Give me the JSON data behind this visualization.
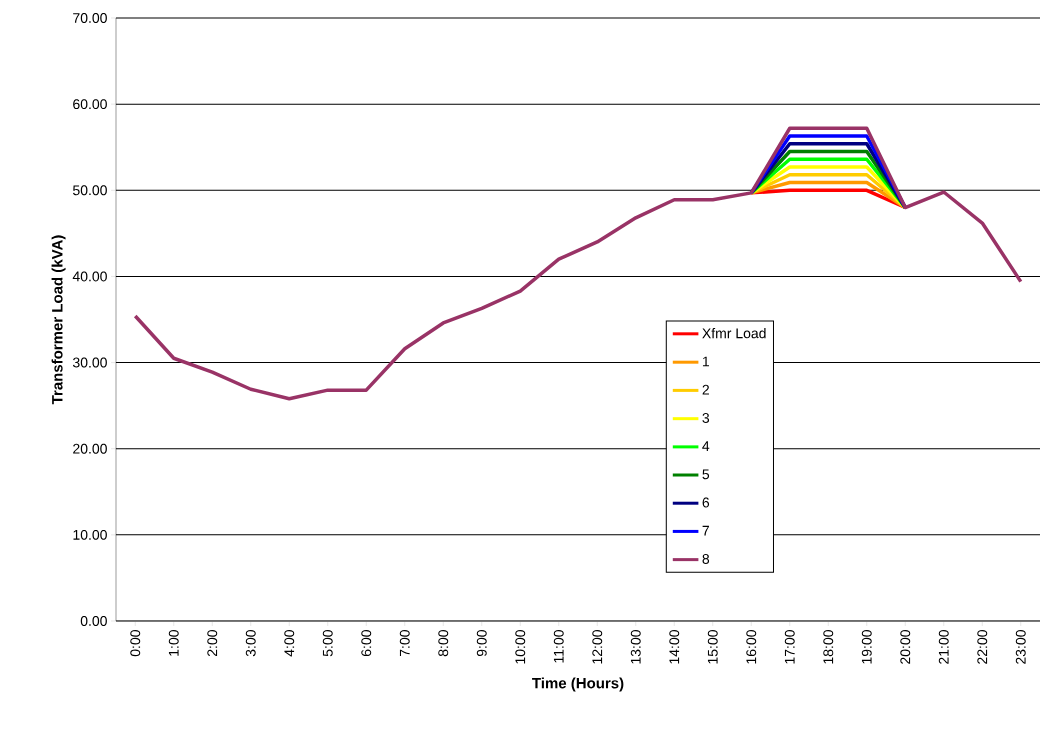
{
  "chart_data": {
    "type": "line",
    "xlabel": "Time (Hours)",
    "ylabel": "Transformer Load (kVA)",
    "categories": [
      "0:00",
      "1:00",
      "2:00",
      "3:00",
      "4:00",
      "5:00",
      "6:00",
      "7:00",
      "8:00",
      "9:00",
      "10:00",
      "11:00",
      "12:00",
      "13:00",
      "14:00",
      "15:00",
      "16:00",
      "17:00",
      "18:00",
      "19:00",
      "20:00",
      "21:00",
      "22:00",
      "23:00"
    ],
    "series": [
      {
        "name": "Xfmr Load",
        "color": "#ff0000",
        "values": [
          null,
          null,
          null,
          null,
          null,
          null,
          null,
          null,
          null,
          null,
          null,
          null,
          null,
          null,
          null,
          null,
          49.7,
          50.0,
          50.0,
          50.0,
          48.0,
          null,
          null,
          null
        ]
      },
      {
        "name": "1",
        "color": "#ff9900",
        "values": [
          null,
          null,
          null,
          null,
          null,
          null,
          null,
          null,
          null,
          null,
          null,
          null,
          null,
          null,
          null,
          null,
          49.7,
          50.9,
          50.9,
          50.9,
          48.0,
          null,
          null,
          null
        ]
      },
      {
        "name": "2",
        "color": "#ffcc00",
        "values": [
          null,
          null,
          null,
          null,
          null,
          null,
          null,
          null,
          null,
          null,
          null,
          null,
          null,
          null,
          null,
          null,
          49.7,
          51.8,
          51.8,
          51.8,
          48.0,
          null,
          null,
          null
        ]
      },
      {
        "name": "3",
        "color": "#ffff00",
        "values": [
          null,
          null,
          null,
          null,
          null,
          null,
          null,
          null,
          null,
          null,
          null,
          null,
          null,
          null,
          null,
          null,
          49.7,
          52.7,
          52.7,
          52.7,
          48.0,
          null,
          null,
          null
        ]
      },
      {
        "name": "4",
        "color": "#00ff00",
        "values": [
          null,
          null,
          null,
          null,
          null,
          null,
          null,
          null,
          null,
          null,
          null,
          null,
          null,
          null,
          null,
          null,
          49.7,
          53.6,
          53.6,
          53.6,
          48.0,
          null,
          null,
          null
        ]
      },
      {
        "name": "5",
        "color": "#008000",
        "values": [
          null,
          null,
          null,
          null,
          null,
          null,
          null,
          null,
          null,
          null,
          null,
          null,
          null,
          null,
          null,
          null,
          49.7,
          54.5,
          54.5,
          54.5,
          48.0,
          null,
          null,
          null
        ]
      },
      {
        "name": "6",
        "color": "#000080",
        "values": [
          null,
          null,
          null,
          null,
          null,
          null,
          null,
          null,
          null,
          null,
          null,
          null,
          null,
          null,
          null,
          null,
          49.7,
          55.4,
          55.4,
          55.4,
          48.0,
          null,
          null,
          null
        ]
      },
      {
        "name": "7",
        "color": "#0000ff",
        "values": [
          null,
          null,
          null,
          null,
          null,
          null,
          null,
          null,
          null,
          null,
          null,
          null,
          null,
          null,
          null,
          null,
          49.7,
          56.3,
          56.3,
          56.3,
          48.0,
          null,
          null,
          null
        ]
      },
      {
        "name": "8",
        "color": "#993366",
        "values": [
          35.4,
          30.5,
          28.9,
          26.9,
          25.8,
          26.8,
          26.8,
          31.6,
          34.6,
          36.3,
          38.3,
          42.0,
          44.0,
          46.8,
          48.9,
          48.9,
          49.7,
          57.2,
          57.2,
          57.2,
          48.0,
          49.8,
          46.2,
          39.4
        ]
      }
    ],
    "ylim": [
      0,
      70
    ],
    "yticks": [
      {
        "value": 0,
        "label": "0.00"
      },
      {
        "value": 10,
        "label": "10.00"
      },
      {
        "value": 20,
        "label": "20.00"
      },
      {
        "value": 30,
        "label": "30.00"
      },
      {
        "value": 40,
        "label": "40.00"
      },
      {
        "value": 50,
        "label": "50.00"
      },
      {
        "value": 60,
        "label": "60.00"
      },
      {
        "value": 70,
        "label": "70.00"
      }
    ],
    "grid": "y",
    "legend": "right",
    "marker": "none",
    "line_style": "solid"
  }
}
